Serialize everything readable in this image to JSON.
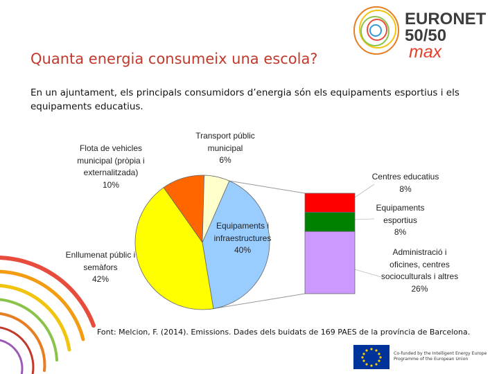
{
  "page": {
    "title": "Quanta energia consumeix una escola?",
    "subtitle": "En un ajuntament, els principals consumidors d’energia són els equipaments esportius i els equipaments educatius.",
    "footnote": "Font: Melcion, F. (2014). Emissions. Dades dels buidats de 169 PAES de la província de Barcelona."
  },
  "logo": {
    "line1": "EURONET",
    "line2": "50/50",
    "line3": "max",
    "eu_text": "Co-funded by the Intelligent Energy Europe Programme of the European Union"
  },
  "chart_data": [
    {
      "type": "pie",
      "slices": [
        {
          "label": "Equipaments i infraestructures",
          "value": 40,
          "value_label": "40%",
          "color": "#99ccff"
        },
        {
          "label": "Enllumenat públic i semàfors",
          "value": 42,
          "value_label": "42%",
          "color": "#ffff00"
        },
        {
          "label": "Flota de vehicles municipal (pròpia i externalitzada)",
          "value": 10,
          "value_label": "10%",
          "color": "#ff6600"
        },
        {
          "label": "Transport públic municipal",
          "value": 6,
          "value_label": "6%",
          "color": "#ffffcc"
        }
      ]
    },
    {
      "type": "bar",
      "stacked": true,
      "segments": [
        {
          "label": "Centres educatius",
          "value": 8,
          "value_label": "8%",
          "color": "#ff0000"
        },
        {
          "label": "Equipaments esportius",
          "value": 8,
          "value_label": "8%",
          "color": "#008000"
        },
        {
          "label": "Administració i oficines, centres socioculturals i altres",
          "value": 26,
          "value_label": "26%",
          "color": "#cc99ff"
        }
      ]
    }
  ]
}
